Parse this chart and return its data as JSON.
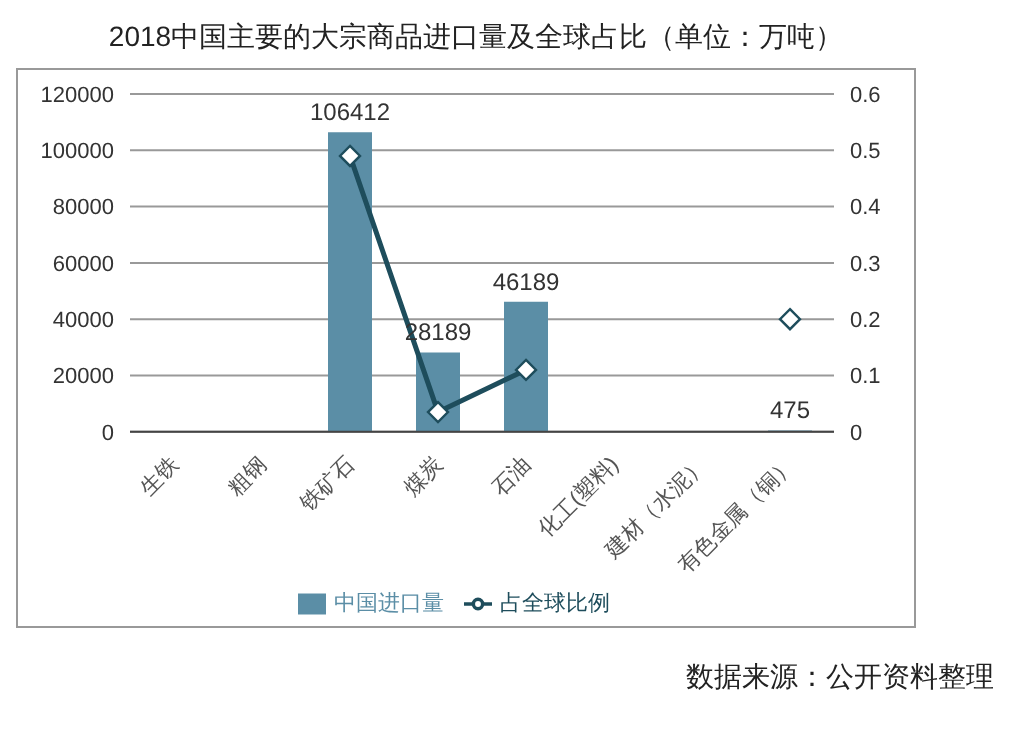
{
  "chart_data": {
    "type": "bar",
    "title": "2018中国主要的大宗商品进口量及全球占比（单位：万吨）",
    "categories": [
      "生铁",
      "粗钢",
      "铁矿石",
      "煤炭",
      "石油",
      "化工(塑料)",
      "建材（水泥）",
      "有色金属（铜）"
    ],
    "series": [
      {
        "name": "中国进口量",
        "color": "#5b8ea6",
        "values": [
          null,
          null,
          106412,
          28189,
          46189,
          null,
          null,
          475
        ],
        "value_labels": [
          null,
          null,
          "106412",
          "28189",
          "46189",
          null,
          null,
          "475"
        ]
      },
      {
        "name": "占全球比例",
        "type": "line",
        "axis": "y2",
        "color": "#1e4d5c",
        "values": [
          null,
          null,
          0.49,
          0.035,
          0.11,
          null,
          null,
          0.2
        ]
      }
    ],
    "ylim": [
      0,
      120000
    ],
    "yticks": [
      0,
      20000,
      40000,
      60000,
      80000,
      100000,
      120000
    ],
    "y2lim": [
      0,
      0.6
    ],
    "y2ticks": [
      0,
      0.1,
      0.2,
      0.3,
      0.4,
      0.5,
      0.6
    ],
    "grid": "y",
    "legend": "bottom",
    "marker": "diamond",
    "annotations": [
      "数据来源：公开资料整理"
    ]
  }
}
